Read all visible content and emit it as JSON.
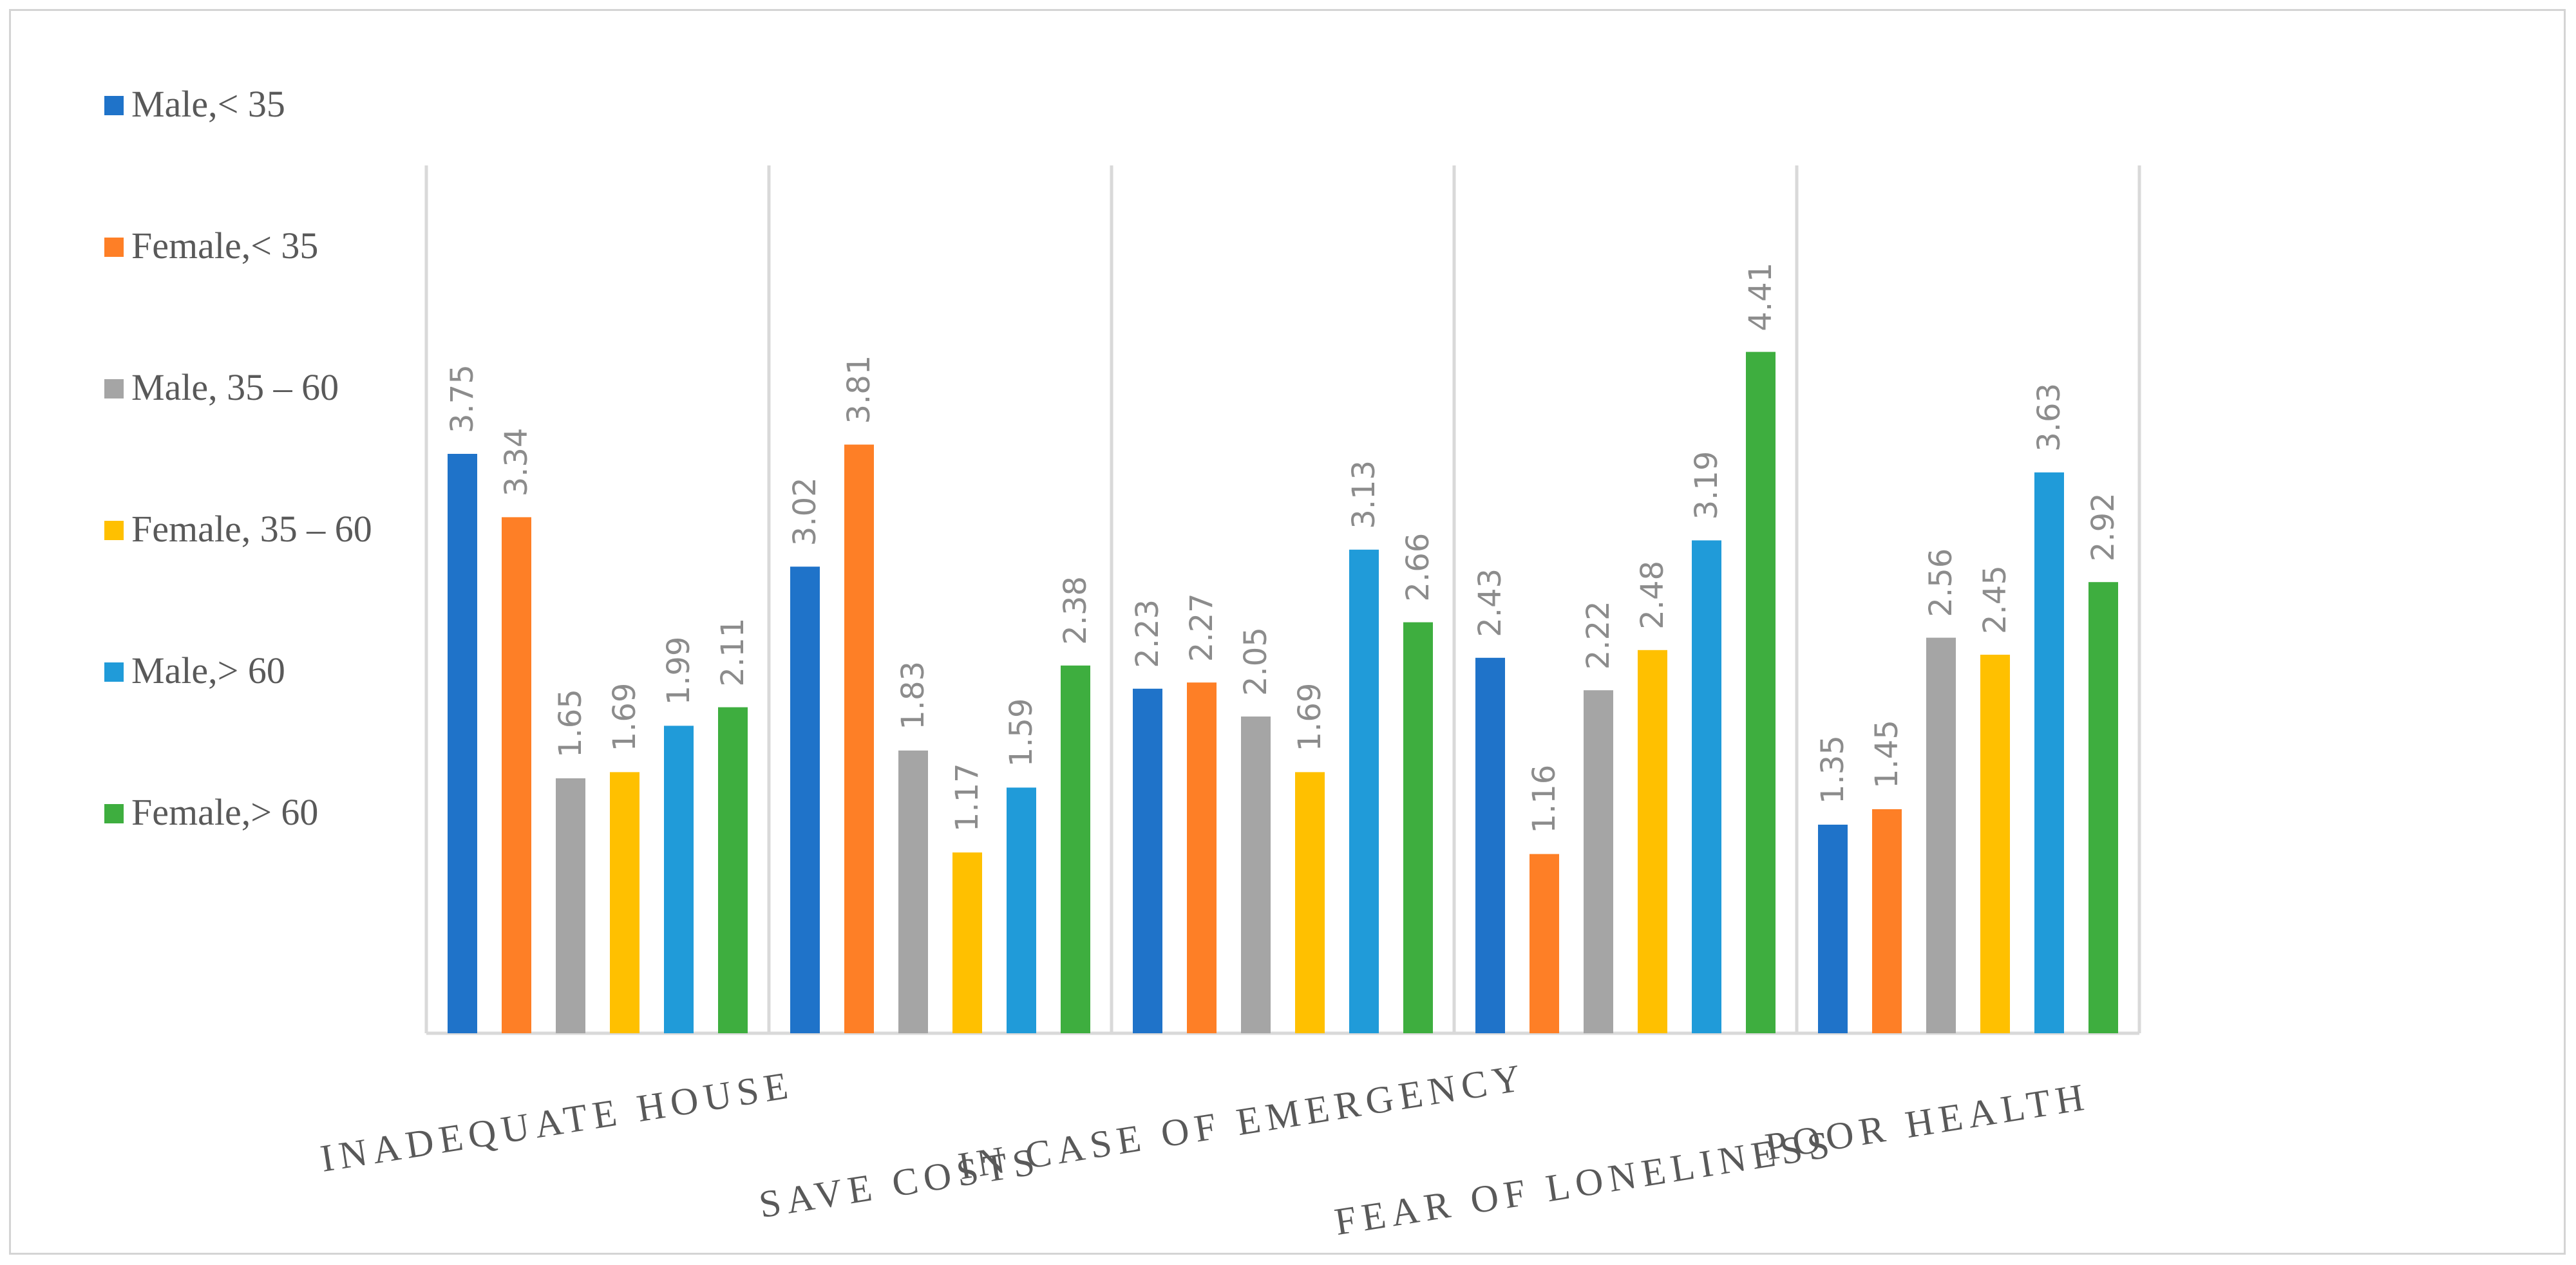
{
  "chart_data": {
    "type": "bar",
    "title": "",
    "xlabel": "",
    "ylabel": "",
    "ylim": [
      0,
      5
    ],
    "grid": false,
    "legend_position": "left",
    "categories": [
      "INADEQUATE HOUSE",
      "SAVE COSTS",
      "IN CASE OF EMERGENCY",
      "FEAR OF LONELINESS",
      "POOR HEALTH"
    ],
    "series": [
      {
        "name": "Male,< 35",
        "color": "#1f73c9",
        "values": [
          3.75,
          3.02,
          2.23,
          2.43,
          1.35
        ]
      },
      {
        "name": "Female,< 35",
        "color": "#fe7f26",
        "values": [
          3.34,
          3.81,
          2.27,
          1.16,
          1.45
        ]
      },
      {
        "name": "Male, 35 – 60",
        "color": "#a5a5a5",
        "values": [
          1.65,
          1.83,
          2.05,
          2.22,
          2.56
        ]
      },
      {
        "name": "Female, 35 – 60",
        "color": "#ffc000",
        "values": [
          1.69,
          1.17,
          1.69,
          2.48,
          2.45
        ]
      },
      {
        "name": "Male,> 60",
        "color": "#209bd9",
        "values": [
          1.99,
          1.59,
          3.13,
          3.19,
          3.63
        ]
      },
      {
        "name": "Female,> 60",
        "color": "#3eae3f",
        "values": [
          2.11,
          2.38,
          2.66,
          4.41,
          2.92
        ]
      }
    ]
  }
}
